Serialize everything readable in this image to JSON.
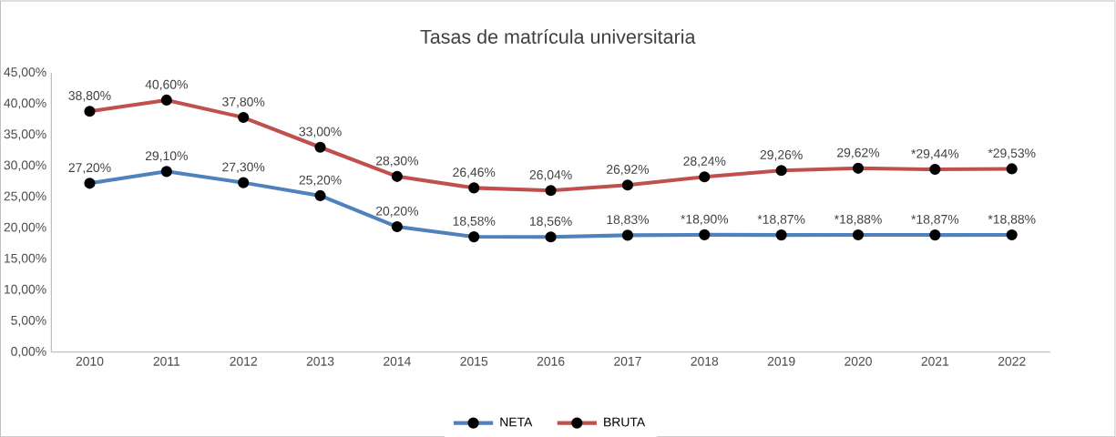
{
  "chart_data": {
    "type": "line",
    "title": "Tasas de matrícula universitaria",
    "categories": [
      "2010",
      "2011",
      "2012",
      "2013",
      "2014",
      "2015",
      "2016",
      "2017",
      "2018",
      "2019",
      "2020",
      "2021",
      "2022"
    ],
    "series": [
      {
        "name": "NETA",
        "color": "#4f81bd",
        "values": [
          27.2,
          29.1,
          27.3,
          25.2,
          20.2,
          18.58,
          18.56,
          18.83,
          18.9,
          18.87,
          18.88,
          18.87,
          18.88
        ],
        "value_labels": [
          "27,20%",
          "29,10%",
          "27,30%",
          "25,20%",
          "20,20%",
          "18,58%",
          "18,56%",
          "18,83%",
          "*18,90%",
          "*18,87%",
          "*18,88%",
          "*18,87%",
          "*18,88%"
        ]
      },
      {
        "name": "BRUTA",
        "color": "#c0504d",
        "values": [
          38.8,
          40.6,
          37.8,
          33.0,
          28.3,
          26.46,
          26.04,
          26.92,
          28.24,
          29.26,
          29.62,
          29.44,
          29.53
        ],
        "value_labels": [
          "38,80%",
          "40,60%",
          "37,80%",
          "33,00%",
          "28,30%",
          "26,46%",
          "26,04%",
          "26,92%",
          "28,24%",
          "29,26%",
          "29,62%",
          "*29,44%",
          "*29,53%"
        ]
      }
    ],
    "ylim": [
      0,
      45
    ],
    "yticks": [
      {
        "value": 0,
        "label": "0,00%"
      },
      {
        "value": 5,
        "label": "5,00%"
      },
      {
        "value": 10,
        "label": "10,00%"
      },
      {
        "value": 15,
        "label": "15,00%"
      },
      {
        "value": 20,
        "label": "20,00%"
      },
      {
        "value": 25,
        "label": "25,00%"
      },
      {
        "value": 30,
        "label": "30,00%"
      },
      {
        "value": 35,
        "label": "35,00%"
      },
      {
        "value": 40,
        "label": "40,00%"
      },
      {
        "value": 45,
        "label": "45,00%"
      }
    ],
    "grid": false,
    "legend": "bottom",
    "marker": "circle",
    "line_style": "solid"
  }
}
